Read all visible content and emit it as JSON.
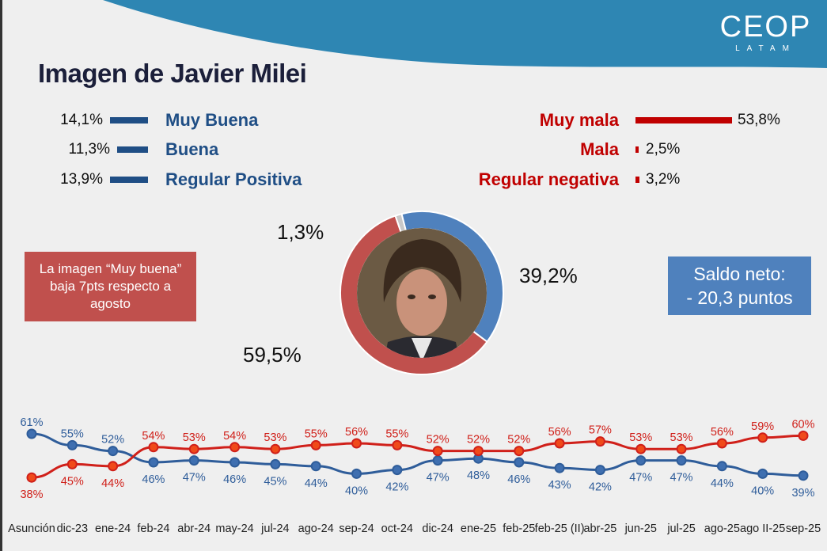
{
  "logo": {
    "main": "CEOP",
    "sub": "LATAM"
  },
  "title": "Imagen de Javier Milei",
  "positive": [
    {
      "pct": "14,1%",
      "label": "Muy Buena",
      "value": 14.1
    },
    {
      "pct": "11,3%",
      "label": "Buena",
      "value": 11.3
    },
    {
      "pct": "13,9%",
      "label": "Regular Positiva",
      "value": 13.9
    }
  ],
  "negative": [
    {
      "pct": "53,8%",
      "label": "Muy mala",
      "value": 53.8
    },
    {
      "pct": "2,5%",
      "label": "Mala",
      "value": 2.5
    },
    {
      "pct": "3,2%",
      "label": "Regular negativa",
      "value": 3.2
    }
  ],
  "donut": {
    "segments": [
      {
        "label": "1,3%",
        "value": 1.3,
        "color": "#c8c8c8"
      },
      {
        "label": "39,2%",
        "value": 39.2,
        "color": "#4f81bd"
      },
      {
        "label": "59,5%",
        "value": 59.5,
        "color": "#c0504d"
      }
    ]
  },
  "callout_left": [
    "La imagen “Muy buena”",
    "baja 7pts respecto a",
    "agosto"
  ],
  "callout_right": [
    "Saldo neto:",
    "- 20,3 puntos"
  ],
  "chart_data": {
    "type": "line",
    "categories": [
      "Asunción",
      "dic-23",
      "ene-24",
      "feb-24",
      "abr-24",
      "may-24",
      "jul-24",
      "ago-24",
      "sep-24",
      "oct-24",
      "dic-24",
      "ene-25",
      "feb-25",
      "feb-25 (II)",
      "abr-25",
      "jun-25",
      "jul-25",
      "ago-25",
      "ago II-25",
      "sep-25"
    ],
    "series": [
      {
        "color": "#2f5d9a",
        "values": [
          61,
          55,
          52,
          46,
          47,
          46,
          45,
          44,
          40,
          42,
          47,
          48,
          46,
          43,
          42,
          47,
          47,
          44,
          40,
          39
        ]
      },
      {
        "color": "#d0201a",
        "values": [
          38,
          45,
          44,
          54,
          53,
          54,
          53,
          55,
          56,
          55,
          52,
          52,
          52,
          56,
          57,
          53,
          53,
          56,
          59,
          60
        ]
      }
    ],
    "value_suffix": "%"
  }
}
